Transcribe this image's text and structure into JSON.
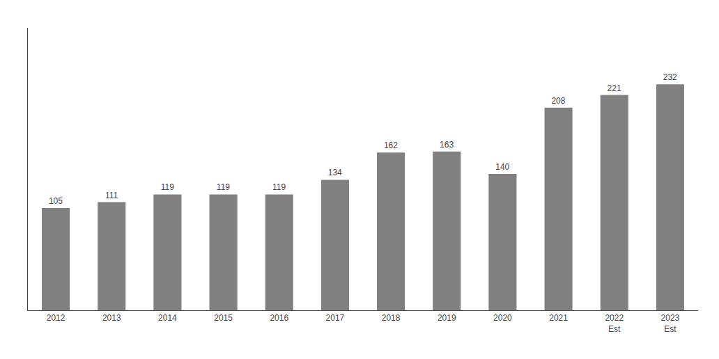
{
  "chart_data": {
    "type": "bar",
    "categories": [
      "2012",
      "2013",
      "2014",
      "2015",
      "2016",
      "2017",
      "2018",
      "2019",
      "2020",
      "2021",
      "2022\nEst",
      "2023\nEst"
    ],
    "values": [
      105,
      111,
      119,
      119,
      119,
      134,
      162,
      163,
      140,
      208,
      221,
      232
    ],
    "color": "#808080",
    "ylim": [
      0,
      290
    ],
    "grid": false,
    "data_labels": true,
    "tick_labels": "x"
  }
}
